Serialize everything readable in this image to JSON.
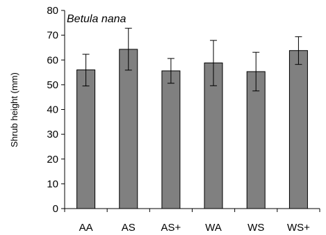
{
  "chart_data": {
    "type": "bar",
    "title": "Betula nana",
    "xlabel": "",
    "ylabel": "Shrub height (mm)",
    "categories": [
      "AA",
      "AS",
      "AS+",
      "WA",
      "WS",
      "WS+"
    ],
    "values": [
      56,
      64.3,
      55.6,
      58.8,
      55.3,
      63.8
    ],
    "error_upper": [
      62.3,
      72.8,
      60.6,
      67.9,
      63.1,
      69.4
    ],
    "error_lower": [
      49.5,
      55.9,
      50.6,
      49.6,
      47.5,
      58.2
    ],
    "ylim": [
      0,
      80
    ],
    "yticks": [
      0,
      10,
      20,
      30,
      40,
      50,
      60,
      70,
      80
    ],
    "grid": false,
    "bar_color": "#808080",
    "axis_color": "#000000"
  }
}
